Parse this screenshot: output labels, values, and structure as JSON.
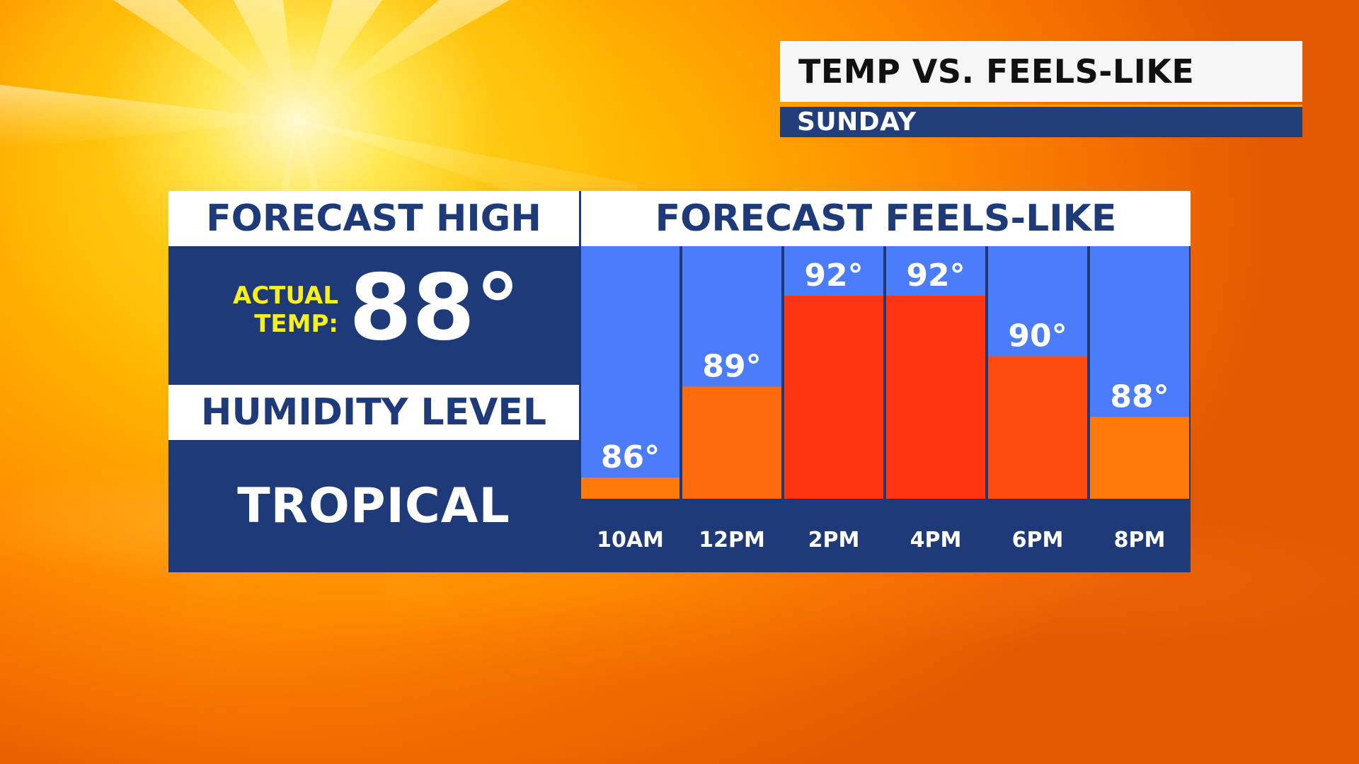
{
  "title": "TEMP VS. FEELS-LIKE",
  "subtitle": "SUNDAY",
  "left_panel": {
    "forecast_high_header": "FORECAST HIGH",
    "actual_temp_label_line1": "ACTUAL",
    "actual_temp_label_line2": "TEMP:",
    "actual_temp_value": "88°",
    "humidity_header": "HUMIDITY LEVEL",
    "humidity_value": "TROPICAL"
  },
  "chart_data": {
    "type": "bar",
    "title": "FORECAST FEELS-LIKE",
    "categories": [
      "10AM",
      "12PM",
      "2PM",
      "4PM",
      "6PM",
      "8PM"
    ],
    "values": [
      86,
      89,
      92,
      92,
      90,
      88
    ],
    "value_labels": [
      "86°",
      "89°",
      "92°",
      "92°",
      "90°",
      "88°"
    ],
    "ylim": [
      85.3,
      92
    ],
    "grid": false,
    "bar_colors": [
      "#ff7a0a",
      "#ff6a0a",
      "#ff3410",
      "#ff3410",
      "#ff4a10",
      "#ff7a0a"
    ]
  },
  "colors": {
    "panel_navy": "#1f3a78",
    "chart_background": "#4b7cf9",
    "actual_label": "#f7f01c",
    "header_background": "#ffffff"
  }
}
